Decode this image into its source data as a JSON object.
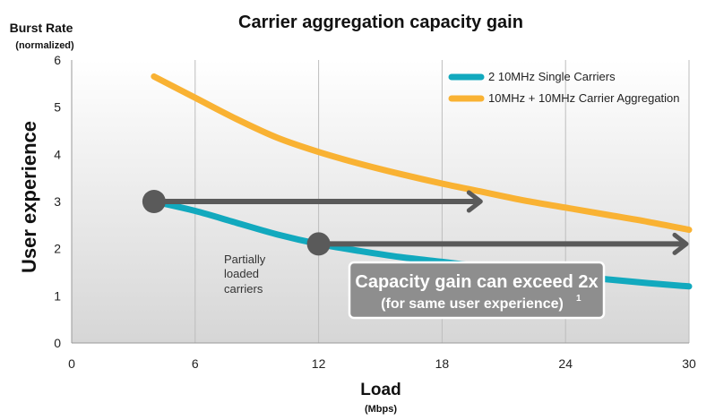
{
  "chart_data": {
    "type": "line",
    "title": "Carrier aggregation capacity gain",
    "xlabel": "Load",
    "xunit": "(Mbps)",
    "ylabel": "User experience",
    "ytitle_top": "Burst Rate",
    "ytitle_top_sub": "(normalized)",
    "xlim": [
      0,
      30
    ],
    "ylim": [
      0,
      6
    ],
    "x_ticks": [
      0,
      6,
      12,
      18,
      24,
      30
    ],
    "y_ticks": [
      0,
      1,
      2,
      3,
      4,
      5,
      6
    ],
    "grid": "vertical",
    "legend_position": "top-right",
    "series": [
      {
        "name": "2  10MHz Single Carriers",
        "color": "#12a9be",
        "x": [
          4,
          6,
          8,
          10,
          12,
          14,
          16,
          18,
          20,
          22,
          24,
          26,
          28,
          30
        ],
        "y": [
          3.0,
          2.8,
          2.55,
          2.3,
          2.1,
          1.95,
          1.82,
          1.72,
          1.62,
          1.53,
          1.44,
          1.35,
          1.27,
          1.2
        ]
      },
      {
        "name": "10MHz + 10MHz Carrier Aggregation",
        "color": "#f9b233",
        "x": [
          4,
          6,
          8,
          10,
          12,
          14,
          16,
          18,
          20,
          22,
          24,
          26,
          28,
          30
        ],
        "y": [
          5.65,
          5.2,
          4.75,
          4.35,
          4.05,
          3.8,
          3.58,
          3.38,
          3.2,
          3.02,
          2.87,
          2.72,
          2.57,
          2.4
        ]
      }
    ],
    "markers": [
      {
        "x": 4,
        "y": 3.0,
        "color": "#5a5a5a"
      },
      {
        "x": 12,
        "y": 2.1,
        "color": "#5a5a5a"
      }
    ],
    "arrows": [
      {
        "x1": 4,
        "y1": 3.0,
        "x2": 20,
        "y2": 3.0,
        "color": "#5a5a5a"
      },
      {
        "x1": 12,
        "y1": 2.1,
        "x2": 30,
        "y2": 2.1,
        "color": "#5a5a5a"
      }
    ],
    "annotations": {
      "partial": [
        "Partially",
        "loaded",
        "carriers"
      ],
      "callout_line1": "Capacity gain can exceed 2x",
      "callout_line2": "(for same user experience)",
      "callout_sup": "1"
    }
  }
}
